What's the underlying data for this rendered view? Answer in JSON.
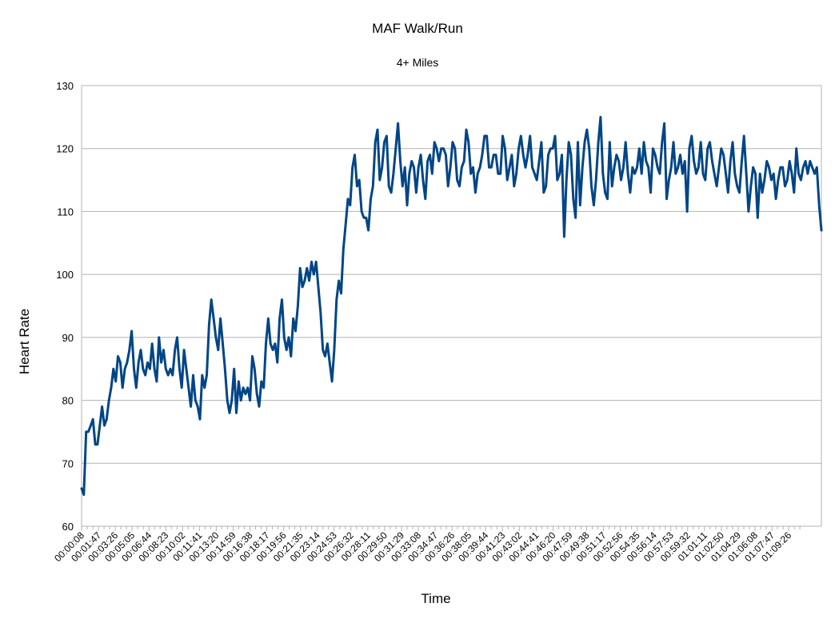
{
  "chart_data": {
    "type": "line",
    "title": "MAF Walk/Run",
    "subtitle": "4+ Miles",
    "xlabel": "Time",
    "ylabel": "Heart Rate",
    "ylim": [
      60,
      130
    ],
    "yticks": [
      60,
      70,
      80,
      90,
      100,
      110,
      120,
      130
    ],
    "grid": true,
    "legend": "none",
    "line_color": "#004586",
    "x_tick_labels": [
      "00:00:08",
      "00:01:47",
      "00:03:26",
      "00:05:05",
      "00:06:44",
      "00:08:23",
      "00:10:02",
      "00:11:41",
      "00:13:20",
      "00:14:59",
      "00:16:38",
      "00:18:17",
      "00:19:56",
      "00:21:35",
      "00:23:14",
      "00:24:53",
      "00:26:32",
      "00:28:11",
      "00:29:50",
      "00:31:29",
      "00:33:08",
      "00:34:47",
      "00:36:26",
      "00:38:05",
      "00:39:44",
      "00:41:23",
      "00:43:02",
      "00:44:41",
      "00:46:20",
      "00:47:59",
      "00:49:38",
      "00:51:17",
      "00:52:56",
      "00:54:35",
      "00:56:14",
      "00:57:53",
      "00:59:32",
      "01:01:11",
      "01:02:50",
      "01:04:29",
      "01:06:08",
      "01:07:47",
      "01:09:26"
    ],
    "series": [
      {
        "values": [
          66,
          65,
          75,
          75,
          76,
          77,
          73,
          73,
          76,
          79,
          76,
          77,
          80,
          82,
          85,
          83,
          87,
          86,
          82,
          85,
          86,
          88,
          91,
          85,
          82,
          86,
          88,
          85,
          84,
          86,
          85,
          89,
          85,
          83,
          90,
          86,
          88,
          85,
          84,
          85,
          84,
          88,
          90,
          85,
          82,
          88,
          85,
          82,
          79,
          84,
          80,
          79,
          77,
          84,
          82,
          84,
          92,
          96,
          93,
          90,
          88,
          93,
          89,
          85,
          80,
          78,
          80,
          85,
          78,
          83,
          80,
          82,
          81,
          82,
          80,
          87,
          85,
          81,
          79,
          83,
          82,
          89,
          93,
          89,
          88,
          89,
          86,
          93,
          96,
          90,
          88,
          90,
          87,
          93,
          91,
          95,
          101,
          98,
          99,
          101,
          99,
          102,
          100,
          102,
          98,
          94,
          88,
          87,
          89,
          86,
          83,
          88,
          96,
          99,
          97,
          104,
          108,
          112,
          111,
          117,
          119,
          114,
          115,
          110,
          109,
          109,
          107,
          112,
          114,
          121,
          123,
          115,
          117,
          121,
          122,
          114,
          113,
          116,
          120,
          124,
          118,
          114,
          117,
          111,
          116,
          118,
          117,
          113,
          117,
          119,
          115,
          112,
          118,
          119,
          116,
          121,
          120,
          118,
          120,
          120,
          119,
          114,
          117,
          121,
          120,
          115,
          114,
          117,
          118,
          123,
          121,
          116,
          117,
          113,
          116,
          117,
          119,
          122,
          122,
          117,
          117,
          119,
          119,
          116,
          116,
          122,
          120,
          115,
          117,
          119,
          114,
          116,
          120,
          122,
          119,
          117,
          119,
          122,
          117,
          116,
          115,
          118,
          121,
          113,
          114,
          119,
          120,
          120,
          122,
          115,
          116,
          119,
          106,
          115,
          121,
          119,
          112,
          109,
          121,
          111,
          117,
          121,
          123,
          120,
          114,
          111,
          115,
          121,
          125,
          116,
          113,
          112,
          121,
          114,
          117,
          119,
          118,
          115,
          117,
          121,
          116,
          113,
          117,
          116,
          117,
          120,
          116,
          121,
          118,
          117,
          113,
          120,
          119,
          117,
          116,
          121,
          124,
          112,
          115,
          117,
          121,
          116,
          117,
          119,
          116,
          118,
          110,
          120,
          122,
          118,
          116,
          117,
          121,
          116,
          115,
          120,
          121,
          118,
          116,
          114,
          117,
          120,
          119,
          116,
          113,
          118,
          121,
          116,
          114,
          113,
          118,
          122,
          116,
          110,
          114,
          117,
          116,
          109,
          116,
          113,
          115,
          118,
          117,
          115,
          116,
          112,
          115,
          117,
          117,
          114,
          115,
          118,
          116,
          113,
          120,
          116,
          115,
          117,
          118,
          116,
          118,
          117,
          116,
          117,
          111,
          107
        ]
      }
    ]
  }
}
